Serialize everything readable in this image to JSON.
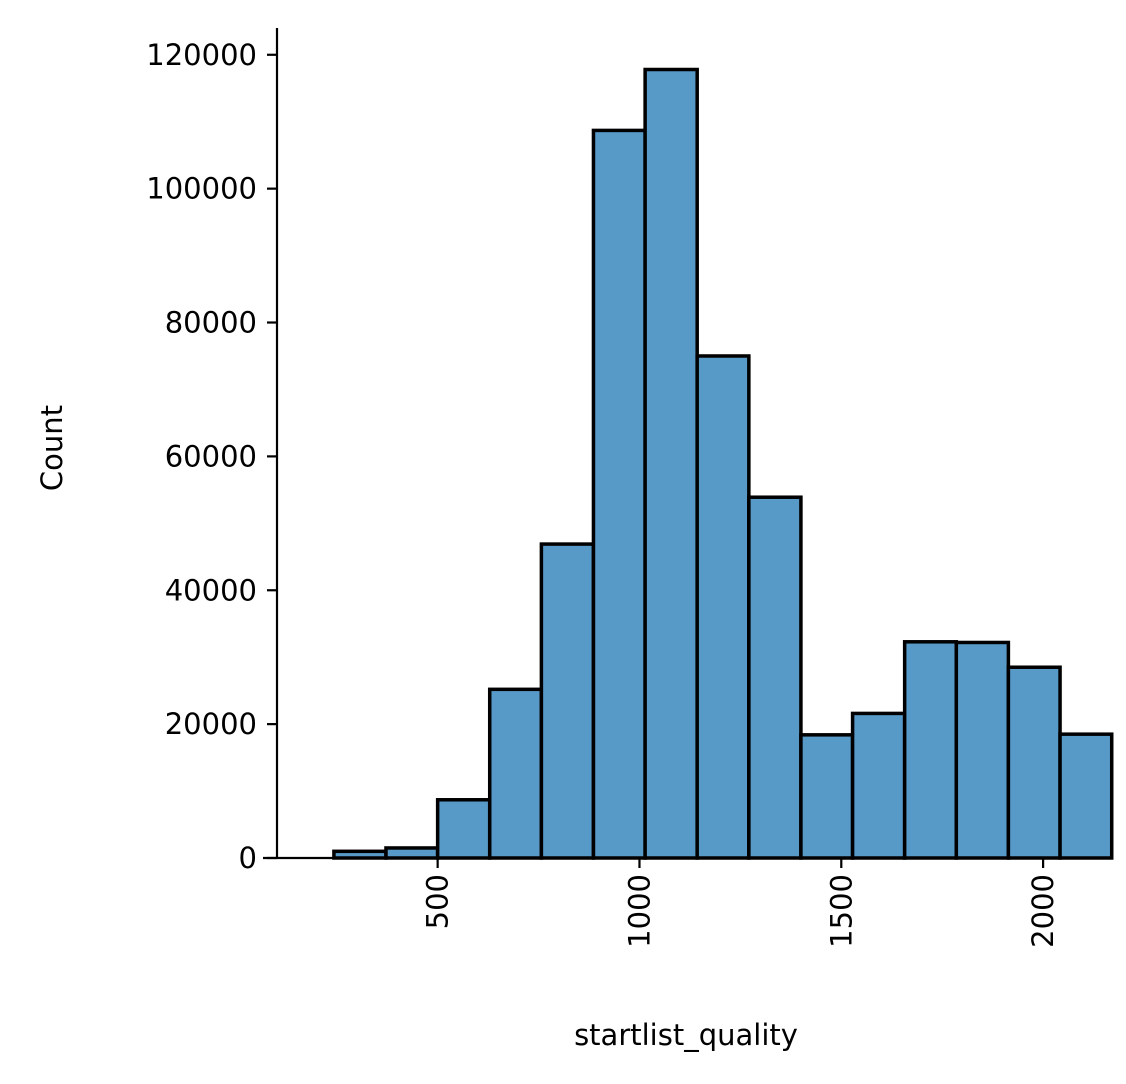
{
  "chart_data": {
    "type": "bar",
    "title": "",
    "xlabel": "startlist_quality",
    "ylabel": "Count",
    "bar_color": "#5799c7",
    "edge_color": "#000000",
    "grid": false,
    "legend": "none",
    "xlim": [
      102,
      2136
    ],
    "ylim": [
      0,
      124000
    ],
    "x_ticks": [
      500,
      1000,
      1500,
      2000
    ],
    "x_tick_labels": [
      "500",
      "1000",
      "1500",
      "2000"
    ],
    "y_ticks": [
      0,
      20000,
      40000,
      60000,
      80000,
      100000,
      120000
    ],
    "y_tick_labels": [
      "0",
      "20000",
      "40000",
      "60000",
      "80000",
      "100000",
      "120000"
    ],
    "bin_edges": [
      243,
      372,
      500,
      629,
      757,
      886,
      1014,
      1143,
      1271,
      1400,
      1528,
      1657,
      1785,
      1914,
      2042
    ],
    "series": [
      {
        "values": [
          1000,
          1500,
          8700,
          25200,
          46900,
          108700,
          117800,
          75000,
          53900,
          18400,
          21600,
          32300,
          32200,
          28500,
          18500
        ]
      }
    ]
  }
}
